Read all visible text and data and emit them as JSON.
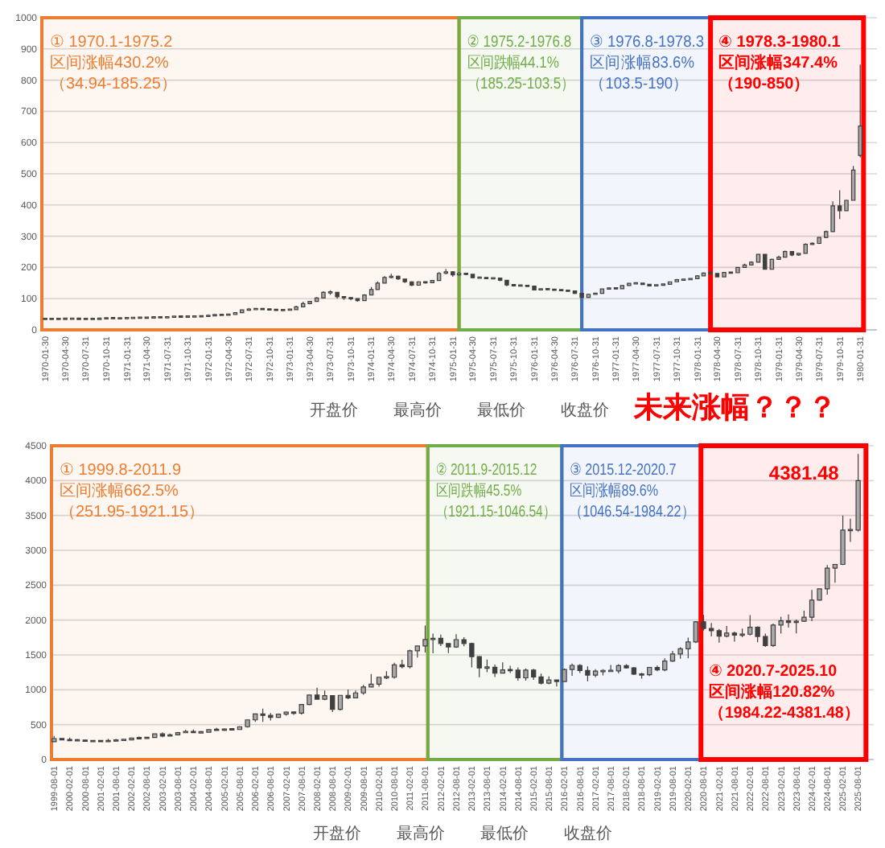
{
  "chart_data": [
    {
      "type": "candlestick",
      "color": "#404040",
      "x": [
        "1970-01-30",
        "1970-02-28",
        "1970-03-31",
        "1970-04-30",
        "1970-05-31",
        "1970-06-30",
        "1970-07-31",
        "1970-08-31",
        "1970-09-30",
        "1970-10-31",
        "1970-11-30",
        "1970-12-31",
        "1971-01-31",
        "1971-02-28",
        "1971-03-31",
        "1971-04-30",
        "1971-05-31",
        "1971-06-30",
        "1971-07-31",
        "1971-08-31",
        "1971-09-30",
        "1971-10-31",
        "1971-11-30",
        "1971-12-31",
        "1972-01-31",
        "1972-02-29",
        "1972-03-31",
        "1972-04-30",
        "1972-05-31",
        "1972-06-30",
        "1972-07-31",
        "1972-08-31",
        "1972-09-30",
        "1972-10-31",
        "1972-11-30",
        "1972-12-31",
        "1973-01-31",
        "1973-02-28",
        "1973-03-31",
        "1973-04-30",
        "1973-05-31",
        "1973-06-30",
        "1973-07-31",
        "1973-08-31",
        "1973-09-30",
        "1973-10-31",
        "1973-11-30",
        "1973-12-31",
        "1974-01-31",
        "1974-02-28",
        "1974-03-31",
        "1974-04-30",
        "1974-05-31",
        "1974-06-30",
        "1974-07-31",
        "1974-08-31",
        "1974-09-30",
        "1974-10-31",
        "1974-11-30",
        "1974-12-31",
        "1975-01-31",
        "1975-02-28",
        "1975-03-31",
        "1975-04-30",
        "1975-05-31",
        "1975-06-30",
        "1975-07-31",
        "1975-08-31",
        "1975-09-30",
        "1975-10-31",
        "1975-11-30",
        "1975-12-31",
        "1976-01-31",
        "1976-02-29",
        "1976-03-31",
        "1976-04-30",
        "1976-05-31",
        "1976-06-30",
        "1976-07-31",
        "1976-08-31",
        "1976-09-30",
        "1976-10-31",
        "1976-11-30",
        "1976-12-31",
        "1977-01-31",
        "1977-02-28",
        "1977-03-31",
        "1977-04-30",
        "1977-05-31",
        "1977-06-30",
        "1977-07-31",
        "1977-08-31",
        "1977-09-30",
        "1977-10-31",
        "1977-11-30",
        "1977-12-31",
        "1978-01-31",
        "1978-02-28",
        "1978-03-31",
        "1978-04-30",
        "1978-05-31",
        "1978-06-30",
        "1978-07-31",
        "1978-08-31",
        "1978-09-30",
        "1978-10-31",
        "1978-11-30",
        "1978-12-31",
        "1979-01-31",
        "1979-02-28",
        "1979-03-31",
        "1979-04-30",
        "1979-05-31",
        "1979-06-30",
        "1979-07-31",
        "1979-08-31",
        "1979-09-30",
        "1979-10-31",
        "1979-11-30",
        "1979-12-31",
        "1980-01-31"
      ],
      "ohlc": [
        [
          35,
          36,
          35,
          35
        ],
        [
          35,
          36,
          34,
          35
        ],
        [
          35,
          36,
          34,
          35
        ],
        [
          35,
          37,
          35,
          36
        ],
        [
          36,
          37,
          35,
          36
        ],
        [
          36,
          37,
          35,
          35
        ],
        [
          35,
          36,
          34,
          35
        ],
        [
          35,
          36,
          34,
          35
        ],
        [
          35,
          37,
          35,
          36
        ],
        [
          36,
          38,
          36,
          38
        ],
        [
          38,
          38,
          37,
          37
        ],
        [
          37,
          38,
          37,
          37
        ],
        [
          37,
          39,
          37,
          38
        ],
        [
          38,
          40,
          38,
          39
        ],
        [
          39,
          40,
          38,
          39
        ],
        [
          39,
          40,
          38,
          39
        ],
        [
          39,
          42,
          39,
          41
        ],
        [
          41,
          41,
          39,
          40
        ],
        [
          40,
          42,
          40,
          41
        ],
        [
          41,
          44,
          41,
          43
        ],
        [
          43,
          43,
          41,
          42
        ],
        [
          42,
          44,
          42,
          43
        ],
        [
          43,
          44,
          42,
          43
        ],
        [
          43,
          45,
          43,
          44
        ],
        [
          44,
          49,
          44,
          46
        ],
        [
          46,
          49,
          46,
          48
        ],
        [
          48,
          49,
          47,
          48
        ],
        [
          48,
          50,
          48,
          49
        ],
        [
          49,
          57,
          49,
          55
        ],
        [
          55,
          66,
          55,
          64
        ],
        [
          64,
          70,
          63,
          66
        ],
        [
          66,
          70,
          64,
          67
        ],
        [
          67,
          68,
          63,
          66
        ],
        [
          66,
          67,
          63,
          65
        ],
        [
          65,
          66,
          62,
          63
        ],
        [
          63,
          65,
          62,
          64
        ],
        [
          64,
          67,
          63,
          65
        ],
        [
          65,
          77,
          65,
          74
        ],
        [
          74,
          90,
          74,
          84
        ],
        [
          84,
          93,
          82,
          91
        ],
        [
          91,
          105,
          90,
          102
        ],
        [
          102,
          124,
          102,
          120
        ],
        [
          120,
          127,
          112,
          120
        ],
        [
          120,
          120,
          100,
          106
        ],
        [
          106,
          108,
          96,
          103
        ],
        [
          103,
          104,
          95,
          100
        ],
        [
          100,
          101,
          90,
          94
        ],
        [
          94,
          114,
          94,
          112
        ],
        [
          112,
          137,
          112,
          129
        ],
        [
          129,
          155,
          128,
          150
        ],
        [
          150,
          172,
          148,
          168
        ],
        [
          168,
          180,
          165,
          172
        ],
        [
          172,
          174,
          160,
          163
        ],
        [
          163,
          164,
          150,
          154
        ],
        [
          154,
          156,
          140,
          143
        ],
        [
          143,
          156,
          142,
          154
        ],
        [
          154,
          156,
          148,
          151
        ],
        [
          151,
          160,
          150,
          158
        ],
        [
          158,
          185,
          157,
          181
        ],
        [
          181,
          195,
          178,
          186
        ],
        [
          186,
          188,
          170,
          176
        ],
        [
          176,
          185,
          174,
          181
        ],
        [
          181,
          182,
          175,
          178
        ],
        [
          178,
          179,
          165,
          167
        ],
        [
          167,
          169,
          164,
          167
        ],
        [
          167,
          168,
          163,
          165
        ],
        [
          165,
          168,
          162,
          166
        ],
        [
          166,
          167,
          156,
          159
        ],
        [
          159,
          160,
          140,
          144
        ],
        [
          144,
          145,
          139,
          142
        ],
        [
          142,
          143,
          139,
          142
        ],
        [
          142,
          143,
          137,
          140
        ],
        [
          140,
          141,
          126,
          128
        ],
        [
          128,
          133,
          127,
          132
        ],
        [
          132,
          133,
          128,
          129
        ],
        [
          129,
          130,
          126,
          128
        ],
        [
          128,
          129,
          124,
          126
        ],
        [
          126,
          127,
          123,
          125
        ],
        [
          125,
          126,
          115,
          117
        ],
        [
          117,
          118,
          103,
          104
        ],
        [
          104,
          116,
          104,
          114
        ],
        [
          114,
          118,
          113,
          117
        ],
        [
          117,
          132,
          116,
          131
        ],
        [
          131,
          136,
          130,
          134
        ],
        [
          134,
          135,
          130,
          132
        ],
        [
          132,
          143,
          131,
          142
        ],
        [
          142,
          150,
          141,
          149
        ],
        [
          149,
          151,
          147,
          149
        ],
        [
          149,
          150,
          144,
          146
        ],
        [
          146,
          147,
          139,
          141
        ],
        [
          141,
          145,
          140,
          144
        ],
        [
          144,
          147,
          143,
          146
        ],
        [
          146,
          155,
          145,
          154
        ],
        [
          154,
          163,
          153,
          161
        ],
        [
          161,
          163,
          158,
          161
        ],
        [
          161,
          166,
          159,
          164
        ],
        [
          164,
          175,
          163,
          173
        ],
        [
          173,
          184,
          172,
          182
        ],
        [
          182,
          190,
          179,
          181
        ],
        [
          181,
          182,
          168,
          170
        ],
        [
          170,
          185,
          169,
          184
        ],
        [
          184,
          186,
          181,
          183
        ],
        [
          183,
          201,
          182,
          200
        ],
        [
          200,
          212,
          199,
          208
        ],
        [
          208,
          220,
          206,
          217
        ],
        [
          217,
          243,
          216,
          242
        ],
        [
          242,
          243,
          193,
          194
        ],
        [
          194,
          228,
          193,
          226
        ],
        [
          226,
          238,
          224,
          233
        ],
        [
          233,
          254,
          231,
          251
        ],
        [
          251,
          252,
          236,
          240
        ],
        [
          240,
          247,
          237,
          245
        ],
        [
          245,
          277,
          244,
          274
        ],
        [
          274,
          280,
          272,
          277
        ],
        [
          277,
          298,
          275,
          296
        ],
        [
          296,
          318,
          294,
          315
        ],
        [
          315,
          412,
          314,
          397
        ],
        [
          397,
          447,
          355,
          382
        ],
        [
          382,
          417,
          380,
          415
        ],
        [
          415,
          525,
          414,
          512
        ],
        [
          559,
          850,
          553,
          653
        ]
      ],
      "xlim": [
        "1970-01-15",
        "1980-04-15"
      ],
      "xticks": [
        "1970-01-30",
        "1970-04-30",
        "1970-07-31",
        "1970-10-31",
        "1971-01-31",
        "1971-04-30",
        "1971-07-31",
        "1971-10-31",
        "1972-01-31",
        "1972-04-30",
        "1972-07-31",
        "1972-10-31",
        "1973-01-31",
        "1973-04-30",
        "1973-07-31",
        "1973-10-31",
        "1974-01-31",
        "1974-04-30",
        "1974-07-31",
        "1974-10-31",
        "1975-01-31",
        "1975-04-30",
        "1975-07-31",
        "1975-10-31",
        "1976-01-31",
        "1976-04-30",
        "1976-07-31",
        "1976-10-31",
        "1977-01-31",
        "1977-04-30",
        "1977-07-31",
        "1977-10-31",
        "1978-01-31",
        "1978-04-30",
        "1978-07-31",
        "1978-10-31",
        "1979-01-31",
        "1979-04-30",
        "1979-07-31",
        "1979-10-31",
        "1980-01-31"
      ],
      "ylim": [
        0,
        1000
      ],
      "yticks": [
        0,
        100,
        200,
        300,
        400,
        500,
        600,
        700,
        800,
        900,
        1000
      ],
      "grid": "y",
      "bands": [
        {
          "axis": "x",
          "from": "1970-01-15",
          "to": "1975-02-28",
          "label": "① 1970.1-1975.2\n区间涨幅430.2%\n（34.94-185.25）",
          "color": "#ED7D31"
        },
        {
          "axis": "x",
          "from": "1975-02-28",
          "to": "1976-08-31",
          "label": "② 1975.2-1976.8\n区间跌幅44.1%\n（185.25-103.5）",
          "color": "#70AD47"
        },
        {
          "axis": "x",
          "from": "1976-08-31",
          "to": "1978-03-31",
          "label": "③ 1976.8-1978.3\n区间涨幅83.6%\n（103.5-190）",
          "color": "#4472C4"
        },
        {
          "axis": "x",
          "from": "1978-03-31",
          "to": "1980-02-15",
          "label": "④ 1978.3-1980.1\n区间涨幅347.4%\n（190-850）",
          "color": "#FF0000"
        }
      ],
      "annotations": [
        "开盘价",
        "最高价",
        "最低价",
        "收盘价",
        "未来涨幅？？？"
      ]
    },
    {
      "type": "candlestick",
      "color": "#404040",
      "x": [
        "1999-08-01",
        "1999-11-01",
        "2000-02-01",
        "2000-05-01",
        "2000-08-01",
        "2000-11-01",
        "2001-02-01",
        "2001-05-01",
        "2001-08-01",
        "2001-11-01",
        "2002-02-01",
        "2002-05-01",
        "2002-08-01",
        "2002-11-01",
        "2003-02-01",
        "2003-05-01",
        "2003-08-01",
        "2003-11-01",
        "2004-02-01",
        "2004-05-01",
        "2004-08-01",
        "2004-11-01",
        "2005-02-01",
        "2005-05-01",
        "2005-08-01",
        "2005-11-01",
        "2006-02-01",
        "2006-05-01",
        "2006-08-01",
        "2006-11-01",
        "2007-02-01",
        "2007-05-01",
        "2007-08-01",
        "2007-11-01",
        "2008-02-01",
        "2008-05-01",
        "2008-08-01",
        "2008-11-01",
        "2009-02-01",
        "2009-05-01",
        "2009-08-01",
        "2009-11-01",
        "2010-02-01",
        "2010-05-01",
        "2010-08-01",
        "2010-11-01",
        "2011-02-01",
        "2011-05-01",
        "2011-08-01",
        "2011-11-01",
        "2012-02-01",
        "2012-05-01",
        "2012-08-01",
        "2012-11-01",
        "2013-02-01",
        "2013-05-01",
        "2013-08-01",
        "2013-11-01",
        "2014-02-01",
        "2014-05-01",
        "2014-08-01",
        "2014-11-01",
        "2015-02-01",
        "2015-05-01",
        "2015-08-01",
        "2015-11-01",
        "2016-02-01",
        "2016-05-01",
        "2016-08-01",
        "2016-11-01",
        "2017-02-01",
        "2017-05-01",
        "2017-08-01",
        "2017-11-01",
        "2018-02-01",
        "2018-05-01",
        "2018-08-01",
        "2018-11-01",
        "2019-02-01",
        "2019-05-01",
        "2019-08-01",
        "2019-11-01",
        "2020-02-01",
        "2020-05-01",
        "2020-08-01",
        "2020-11-01",
        "2021-02-01",
        "2021-05-01",
        "2021-08-01",
        "2021-11-01",
        "2022-02-01",
        "2022-05-01",
        "2022-08-01",
        "2022-11-01",
        "2023-02-01",
        "2023-05-01",
        "2023-08-01",
        "2023-11-01",
        "2024-02-01",
        "2024-05-01",
        "2024-08-01",
        "2024-11-01",
        "2025-02-01",
        "2025-05-01",
        "2025-08-01"
      ],
      "ohlc": [
        [
          255,
          338,
          252,
          300
        ],
        [
          300,
          302,
          276,
          283
        ],
        [
          283,
          313,
          273,
          276
        ],
        [
          276,
          294,
          270,
          276
        ],
        [
          276,
          280,
          263,
          264
        ],
        [
          264,
          275,
          263,
          265
        ],
        [
          265,
          270,
          255,
          263
        ],
        [
          263,
          298,
          262,
          266
        ],
        [
          266,
          293,
          266,
          279
        ],
        [
          279,
          285,
          272,
          282
        ],
        [
          282,
          310,
          282,
          308
        ],
        [
          308,
          330,
          300,
          304
        ],
        [
          304,
          326,
          302,
          317
        ],
        [
          317,
          372,
          315,
          367
        ],
        [
          367,
          388,
          320,
          336
        ],
        [
          336,
          372,
          334,
          354
        ],
        [
          354,
          395,
          345,
          386
        ],
        [
          386,
          428,
          380,
          400
        ],
        [
          400,
          430,
          385,
          388
        ],
        [
          388,
          410,
          371,
          391
        ],
        [
          391,
          430,
          385,
          428
        ],
        [
          428,
          456,
          418,
          422
        ],
        [
          422,
          446,
          410,
          435
        ],
        [
          435,
          443,
          414,
          430
        ],
        [
          430,
          480,
          428,
          470
        ],
        [
          470,
          570,
          460,
          568
        ],
        [
          568,
          655,
          540,
          654
        ],
        [
          654,
          730,
          540,
          633
        ],
        [
          633,
          665,
          560,
          604
        ],
        [
          604,
          650,
          600,
          650
        ],
        [
          650,
          690,
          630,
          679
        ],
        [
          679,
          690,
          640,
          665
        ],
        [
          665,
          795,
          642,
          790
        ],
        [
          790,
          930,
          780,
          925
        ],
        [
          925,
          1030,
          860,
          865
        ],
        [
          865,
          990,
          850,
          915
        ],
        [
          915,
          920,
          680,
          720
        ],
        [
          720,
          920,
          705,
          920
        ],
        [
          920,
          1005,
          865,
          885
        ],
        [
          885,
          990,
          880,
          955
        ],
        [
          955,
          1070,
          930,
          1040
        ],
        [
          1040,
          1227,
          1035,
          1080
        ],
        [
          1080,
          1180,
          1045,
          1180
        ],
        [
          1180,
          1265,
          1155,
          1180
        ],
        [
          1180,
          1388,
          1160,
          1357
        ],
        [
          1357,
          1432,
          1308,
          1332
        ],
        [
          1332,
          1575,
          1308,
          1560
        ],
        [
          1560,
          1632,
          1462,
          1628
        ],
        [
          1628,
          1921,
          1535,
          1720
        ],
        [
          1720,
          1805,
          1523,
          1738
        ],
        [
          1738,
          1792,
          1627,
          1664
        ],
        [
          1664,
          1667,
          1527,
          1614
        ],
        [
          1614,
          1796,
          1600,
          1719
        ],
        [
          1719,
          1755,
          1625,
          1663
        ],
        [
          1663,
          1675,
          1321,
          1475
        ],
        [
          1475,
          1487,
          1180,
          1313
        ],
        [
          1313,
          1434,
          1251,
          1323
        ],
        [
          1323,
          1361,
          1182,
          1240
        ],
        [
          1240,
          1392,
          1240,
          1284
        ],
        [
          1284,
          1345,
          1240,
          1282
        ],
        [
          1282,
          1322,
          1131,
          1171
        ],
        [
          1171,
          1307,
          1132,
          1283
        ],
        [
          1283,
          1300,
          1142,
          1183
        ],
        [
          1183,
          1232,
          1077,
          1095
        ],
        [
          1095,
          1191,
          1078,
          1142
        ],
        [
          1142,
          1145,
          1046,
          1118
        ],
        [
          1118,
          1303,
          1110,
          1291
        ],
        [
          1291,
          1375,
          1200,
          1350
        ],
        [
          1350,
          1367,
          1241,
          1277
        ],
        [
          1277,
          1337,
          1122,
          1211
        ],
        [
          1211,
          1296,
          1180,
          1268
        ],
        [
          1268,
          1296,
          1205,
          1269
        ],
        [
          1269,
          1357,
          1260,
          1271
        ],
        [
          1271,
          1366,
          1236,
          1345
        ],
        [
          1345,
          1366,
          1303,
          1315
        ],
        [
          1315,
          1326,
          1211,
          1224
        ],
        [
          1224,
          1243,
          1160,
          1215
        ],
        [
          1215,
          1326,
          1196,
          1321
        ],
        [
          1321,
          1346,
          1266,
          1284
        ],
        [
          1284,
          1452,
          1267,
          1413
        ],
        [
          1413,
          1557,
          1400,
          1513
        ],
        [
          1513,
          1611,
          1446,
          1589
        ],
        [
          1589,
          1747,
          1451,
          1686
        ],
        [
          1686,
          1984,
          1670,
          1975
        ],
        [
          1975,
          2075,
          1848,
          1879
        ],
        [
          1879,
          1960,
          1764,
          1847
        ],
        [
          1847,
          1872,
          1677,
          1769
        ],
        [
          1769,
          1916,
          1750,
          1814
        ],
        [
          1814,
          1834,
          1690,
          1783
        ],
        [
          1783,
          1877,
          1753,
          1797
        ],
        [
          1797,
          2070,
          1780,
          1897
        ],
        [
          1897,
          1910,
          1681,
          1765
        ],
        [
          1765,
          1807,
          1615,
          1633
        ],
        [
          1633,
          1949,
          1616,
          1928
        ],
        [
          1928,
          2048,
          1805,
          1990
        ],
        [
          1990,
          2080,
          1893,
          1965
        ],
        [
          1965,
          2009,
          1810,
          1983
        ],
        [
          1983,
          2135,
          1973,
          2040
        ],
        [
          2040,
          2431,
          1985,
          2286
        ],
        [
          2286,
          2450,
          2277,
          2448
        ],
        [
          2448,
          2790,
          2365,
          2744
        ],
        [
          2744,
          2801,
          2537,
          2798
        ],
        [
          2798,
          3500,
          2790,
          3289
        ],
        [
          3289,
          3452,
          3120,
          3290
        ],
        [
          3290,
          4381.48,
          3268,
          4000
        ]
      ],
      "xlim": [
        "1999-07-01",
        "2026-02-01"
      ],
      "xticks": [
        "1999-08-01",
        "2000-02-01",
        "2000-08-01",
        "2001-02-01",
        "2001-08-01",
        "2002-02-01",
        "2002-08-01",
        "2003-02-01",
        "2003-08-01",
        "2004-02-01",
        "2004-08-01",
        "2005-02-01",
        "2005-08-01",
        "2006-02-01",
        "2006-08-01",
        "2007-02-01",
        "2007-08-01",
        "2008-02-01",
        "2008-08-01",
        "2009-02-01",
        "2009-08-01",
        "2010-02-01",
        "2010-08-01",
        "2011-02-01",
        "2011-08-01",
        "2012-02-01",
        "2012-08-01",
        "2013-02-01",
        "2013-08-01",
        "2014-02-01",
        "2014-08-01",
        "2015-02-01",
        "2015-08-01",
        "2016-02-01",
        "2016-08-01",
        "2017-02-01",
        "2017-08-01",
        "2018-02-01",
        "2018-08-01",
        "2019-02-01",
        "2019-08-01",
        "2020-02-01",
        "2020-08-01",
        "2021-02-01",
        "2021-08-01",
        "2022-02-01",
        "2022-08-01",
        "2023-02-01",
        "2023-08-01",
        "2024-02-01",
        "2024-08-01",
        "2025-02-01",
        "2025-08-01"
      ],
      "ylim": [
        0,
        4500
      ],
      "yticks": [
        0,
        500,
        1000,
        1500,
        2000,
        2500,
        3000,
        3500,
        4000,
        4500
      ],
      "grid": "y",
      "bands": [
        {
          "axis": "x",
          "from": "1999-07-01",
          "to": "2011-09-01",
          "label": "① 1999.8-2011.9\n区间涨幅662.5%\n（251.95-1921.15）",
          "color": "#ED7D31"
        },
        {
          "axis": "x",
          "from": "2011-09-01",
          "to": "2016-01-01",
          "label": "② 2011.9-2015.12\n区间跌幅45.5%\n（1921.15-1046.54）",
          "color": "#70AD47"
        },
        {
          "axis": "x",
          "from": "2016-01-01",
          "to": "2020-07-01",
          "label": "③ 2015.12-2020.7\n区间涨幅89.6%\n（1046.54-1984.22）",
          "color": "#4472C4"
        },
        {
          "axis": "x",
          "from": "2020-07-01",
          "to": "2025-11-01",
          "label": "④ 2020.7-2025.10\n区间涨幅120.82%\n（1984.22-4381.48）",
          "color": "#FF0000"
        }
      ],
      "annotations": [
        {
          "text": "4381.48",
          "x": "2025-08-01",
          "y": 4381.48
        },
        "开盘价",
        "最高价",
        "最低价",
        "收盘价"
      ]
    }
  ]
}
